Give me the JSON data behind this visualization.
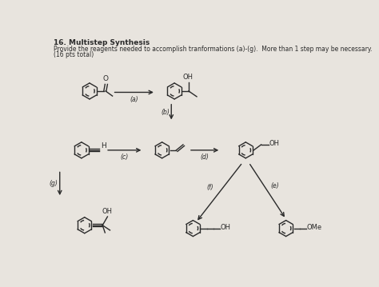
{
  "title_bold": "16. Multistep Synthesis",
  "subtitle": "Provide the reagents needed to accomplish tranformations (a)-(g).  More than 1 step may be necessary.",
  "subtitle2": "(16 pts total)",
  "bg_color": "#e8e4de",
  "text_color": "#2a2a2a",
  "arrow_color": "#2a2a2a",
  "mol_lw": 1.0,
  "font_size": 6.0,
  "ring_r": 13
}
